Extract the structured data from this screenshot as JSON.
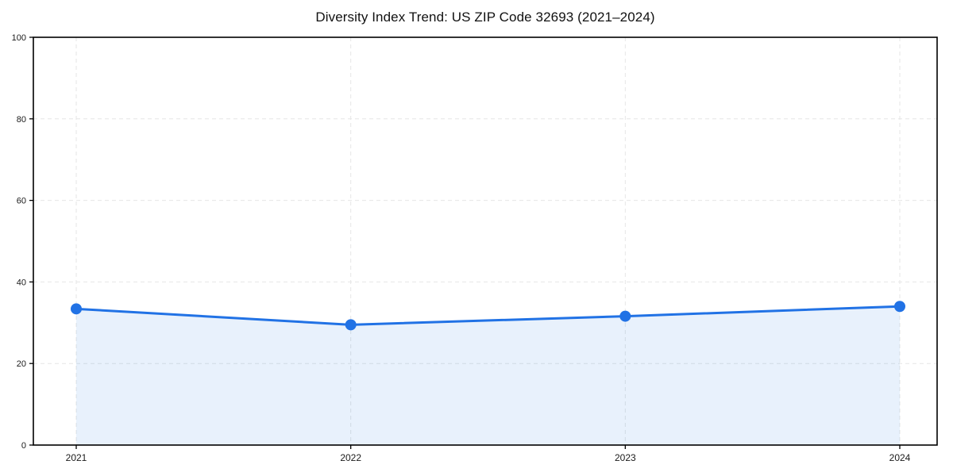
{
  "chart_data": {
    "type": "area",
    "title": "Diversity Index Trend: US ZIP Code 32693 (2021–2024)",
    "x": [
      "2021",
      "2022",
      "2023",
      "2024"
    ],
    "series": [
      {
        "name": "Diversity Index",
        "values": [
          33.4,
          29.5,
          31.6,
          34.0
        ]
      }
    ],
    "xlabel": "",
    "ylabel": "",
    "ylim": [
      0,
      100
    ],
    "yticks": [
      0,
      20,
      40,
      60,
      80,
      100
    ],
    "grid": "dashed",
    "legend_position": "none",
    "marker": "circle",
    "colors": {
      "line": "#2172e5",
      "fill": "#2172e5",
      "fill_opacity": 0.1,
      "grid": "#e6e6e6",
      "axis": "#000000",
      "text": "#1a1a1a"
    }
  }
}
